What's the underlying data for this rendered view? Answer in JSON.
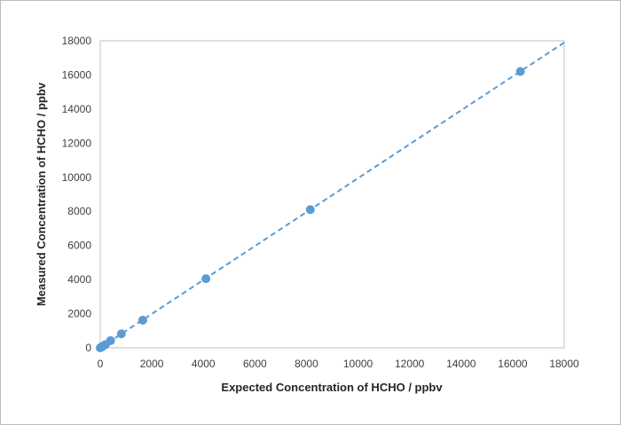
{
  "chart_data": {
    "type": "scatter",
    "title": "",
    "xlabel": "Expected Concentration of HCHO / ppbv",
    "ylabel": "Measured Concentration of HCHO / ppbv",
    "xlim": [
      0,
      18000
    ],
    "ylim": [
      0,
      18000
    ],
    "x_ticks": [
      "0",
      "2000",
      "4000",
      "6000",
      "8000",
      "10000",
      "12000",
      "14000",
      "16000",
      "18000"
    ],
    "y_ticks": [
      "0",
      "2000",
      "4000",
      "6000",
      "8000",
      "10000",
      "12000",
      "14000",
      "16000",
      "18000"
    ],
    "grid": false,
    "legend": "none",
    "series": [
      {
        "points": [
          {
            "x": 0,
            "y": 0
          },
          {
            "x": 50,
            "y": 50
          },
          {
            "x": 100,
            "y": 100
          },
          {
            "x": 200,
            "y": 190
          },
          {
            "x": 400,
            "y": 420
          },
          {
            "x": 820,
            "y": 820
          },
          {
            "x": 1650,
            "y": 1620
          },
          {
            "x": 4100,
            "y": 4050
          },
          {
            "x": 8150,
            "y": 8100
          },
          {
            "x": 16300,
            "y": 16200
          }
        ],
        "color": "#5b9bd5"
      }
    ],
    "trendline": {
      "style": "dashed",
      "color": "#5b9bd5",
      "from": {
        "x": 0,
        "y": 0
      },
      "to": {
        "x": 18000,
        "y": 17900
      }
    }
  }
}
